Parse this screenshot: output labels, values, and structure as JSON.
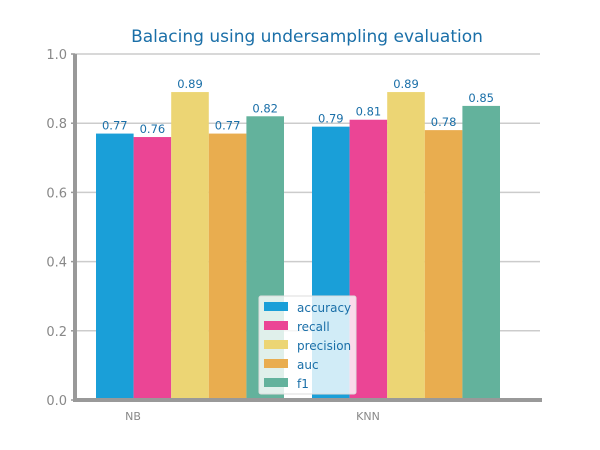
{
  "chart_data": {
    "type": "bar",
    "title": "Balacing using undersampling evaluation",
    "xlabel": "",
    "ylabel": "",
    "categories": [
      "NB",
      "KNN"
    ],
    "series": [
      {
        "name": "accuracy",
        "color": "#1a9fd8",
        "values": [
          0.77,
          0.79
        ],
        "labels": [
          "0.77",
          "0.79"
        ]
      },
      {
        "name": "recall",
        "color": "#eb4595",
        "values": [
          0.76,
          0.81
        ],
        "labels": [
          "0.76",
          "0.81"
        ]
      },
      {
        "name": "precision",
        "color": "#ecd574",
        "values": [
          0.89,
          0.89
        ],
        "labels": [
          "0.89",
          "0.89"
        ]
      },
      {
        "name": "auc",
        "color": "#e9ad4f",
        "values": [
          0.77,
          0.78
        ],
        "labels": [
          "0.77",
          "0.78"
        ]
      },
      {
        "name": "f1",
        "color": "#63b29c",
        "values": [
          0.82,
          0.85
        ],
        "labels": [
          "0.82",
          "0.85"
        ]
      }
    ],
    "ylim": [
      0,
      1.0
    ],
    "yticks": [
      "0.0",
      "0.2",
      "0.4",
      "0.6",
      "0.8",
      "1.0"
    ],
    "grid": "y",
    "legend_position": "bottom-center"
  }
}
